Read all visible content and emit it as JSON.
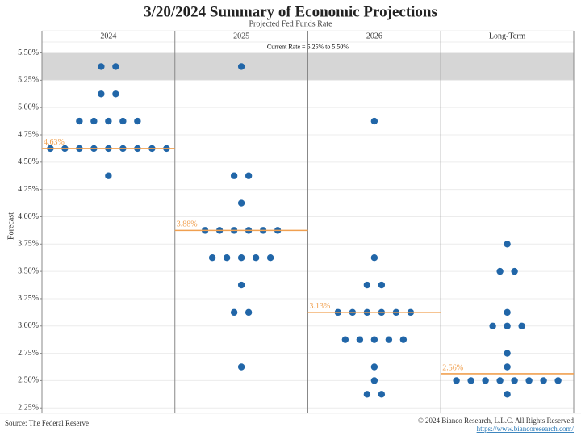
{
  "chart_data": {
    "type": "dot",
    "title": "3/20/2024 Summary of Economic Projections",
    "subtitle": "Projected Fed Funds Rate",
    "y_label": "Forecast",
    "source": "Source: The Federal Reserve",
    "copyright": "© 2024 Bianco Research, L.L.C. All Rights Reserved",
    "url": "https://www.biancoresearch.com/",
    "ylim": [
      2.2,
      5.6
    ],
    "yticks": [
      {
        "value": 2.25,
        "label": "2.25%"
      },
      {
        "value": 2.5,
        "label": "2.50%"
      },
      {
        "value": 2.75,
        "label": "2.75%"
      },
      {
        "value": 3.0,
        "label": "3.00%"
      },
      {
        "value": 3.25,
        "label": "3.25%"
      },
      {
        "value": 3.5,
        "label": "3.50%"
      },
      {
        "value": 3.75,
        "label": "3.75%"
      },
      {
        "value": 4.0,
        "label": "4.00%"
      },
      {
        "value": 4.25,
        "label": "4.25%"
      },
      {
        "value": 4.5,
        "label": "4.50%"
      },
      {
        "value": 4.75,
        "label": "4.75%"
      },
      {
        "value": 5.0,
        "label": "5.00%"
      },
      {
        "value": 5.25,
        "label": "5.25%"
      },
      {
        "value": 5.5,
        "label": "5.50%"
      }
    ],
    "grid": true,
    "band": [
      5.25,
      5.5
    ],
    "band_label": "Current Rate = 5.25% to 5.50%",
    "band_color": "#d6d6d6",
    "dot_color": "#2166a8",
    "median_color": "#f0a050",
    "panels": [
      {
        "name": "2024",
        "values": [
          5.375,
          5.375,
          5.125,
          5.125,
          4.875,
          4.875,
          4.875,
          4.875,
          4.875,
          4.625,
          4.625,
          4.625,
          4.625,
          4.625,
          4.625,
          4.625,
          4.625,
          4.625,
          4.375
        ],
        "median": 4.625,
        "median_label": "4.63%"
      },
      {
        "name": "2025",
        "values": [
          5.375,
          4.375,
          4.375,
          4.125,
          3.875,
          3.875,
          3.875,
          3.875,
          3.875,
          3.875,
          3.625,
          3.625,
          3.625,
          3.625,
          3.625,
          3.375,
          3.125,
          3.125,
          2.625
        ],
        "median": 3.875,
        "median_label": "3.88%"
      },
      {
        "name": "2026",
        "values": [
          4.875,
          3.625,
          3.375,
          3.375,
          3.125,
          3.125,
          3.125,
          3.125,
          3.125,
          3.125,
          2.875,
          2.875,
          2.875,
          2.875,
          2.875,
          2.625,
          2.5,
          2.375,
          2.375
        ],
        "median": 3.125,
        "median_label": "3.13%"
      },
      {
        "name": "Long-Term",
        "values": [
          3.75,
          3.5,
          3.5,
          3.125,
          3.0,
          3.0,
          3.0,
          2.75,
          2.625,
          2.5,
          2.5,
          2.5,
          2.5,
          2.5,
          2.5,
          2.5,
          2.5,
          2.375
        ],
        "median": 2.5625,
        "median_label": "2.56%"
      }
    ]
  }
}
